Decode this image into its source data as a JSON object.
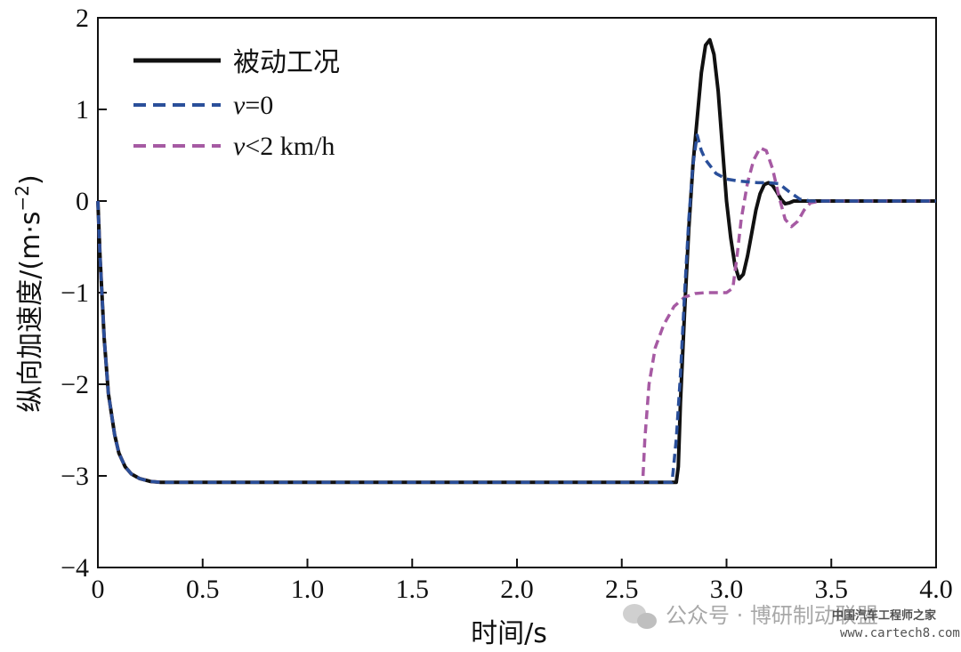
{
  "chart_data": {
    "type": "line",
    "title": "",
    "xlabel": "时间/s",
    "ylabel": "纵向加速度/(m·s",
    "ylabel_sup": "−2",
    "ylabel_close": ")",
    "xlim": [
      0,
      4.0
    ],
    "ylim": [
      -4,
      2
    ],
    "x_ticks": [
      {
        "value": 0,
        "label": "0"
      },
      {
        "value": 0.5,
        "label": "0.5"
      },
      {
        "value": 1.0,
        "label": "1.0"
      },
      {
        "value": 1.5,
        "label": "1.5"
      },
      {
        "value": 2.0,
        "label": "2.0"
      },
      {
        "value": 2.5,
        "label": "2.5"
      },
      {
        "value": 3.0,
        "label": "3.0"
      },
      {
        "value": 3.5,
        "label": "3.5"
      },
      {
        "value": 4.0,
        "label": "4.0"
      }
    ],
    "y_ticks": [
      {
        "value": 2,
        "label": "2"
      },
      {
        "value": 1,
        "label": "1"
      },
      {
        "value": 0,
        "label": "0"
      },
      {
        "value": -1,
        "label": "−1"
      },
      {
        "value": -2,
        "label": "−2"
      },
      {
        "value": -3,
        "label": "−3"
      },
      {
        "value": -4,
        "label": "−4"
      }
    ],
    "grid": false,
    "legend_position": "top-left",
    "series": [
      {
        "name": "被动工况",
        "color": "#111111",
        "dash": "solid",
        "x": [
          0,
          0.01,
          0.03,
          0.05,
          0.08,
          0.1,
          0.13,
          0.16,
          0.2,
          0.25,
          0.3,
          0.5,
          1.0,
          1.5,
          2.0,
          2.5,
          2.6,
          2.7,
          2.76,
          2.77,
          2.78,
          2.8,
          2.82,
          2.84,
          2.86,
          2.88,
          2.9,
          2.92,
          2.94,
          2.96,
          2.98,
          3.0,
          3.02,
          3.04,
          3.06,
          3.08,
          3.1,
          3.12,
          3.14,
          3.16,
          3.18,
          3.2,
          3.22,
          3.24,
          3.26,
          3.28,
          3.3,
          3.32,
          3.34,
          3.36,
          3.4,
          3.5,
          3.6,
          3.8,
          4.0
        ],
        "values": [
          0,
          -0.6,
          -1.5,
          -2.1,
          -2.55,
          -2.75,
          -2.9,
          -2.98,
          -3.03,
          -3.06,
          -3.07,
          -3.07,
          -3.07,
          -3.07,
          -3.07,
          -3.07,
          -3.07,
          -3.07,
          -3.07,
          -2.9,
          -2.2,
          -1.2,
          -0.3,
          0.4,
          0.9,
          1.4,
          1.7,
          1.76,
          1.6,
          1.2,
          0.6,
          0.0,
          -0.4,
          -0.7,
          -0.85,
          -0.8,
          -0.6,
          -0.35,
          -0.1,
          0.08,
          0.18,
          0.2,
          0.17,
          0.1,
          0.02,
          -0.03,
          -0.02,
          0.0,
          0.0,
          0.0,
          0.0,
          0.0,
          0.0,
          0.0,
          0.0
        ]
      },
      {
        "name": "v=0",
        "color": "#2a4f9a",
        "dash": "dashed",
        "x": [
          0,
          0.01,
          0.03,
          0.05,
          0.08,
          0.1,
          0.13,
          0.16,
          0.2,
          0.25,
          0.3,
          0.5,
          1.0,
          1.5,
          2.0,
          2.5,
          2.6,
          2.7,
          2.74,
          2.76,
          2.78,
          2.8,
          2.82,
          2.84,
          2.86,
          2.88,
          2.9,
          2.95,
          3.0,
          3.05,
          3.1,
          3.15,
          3.2,
          3.25,
          3.3,
          3.35,
          3.4,
          3.5,
          3.7,
          4.0
        ],
        "values": [
          0,
          -0.6,
          -1.5,
          -2.1,
          -2.55,
          -2.75,
          -2.9,
          -2.98,
          -3.03,
          -3.06,
          -3.07,
          -3.07,
          -3.07,
          -3.07,
          -3.07,
          -3.07,
          -3.07,
          -3.07,
          -3.07,
          -2.6,
          -1.9,
          -1.0,
          -0.2,
          0.4,
          0.72,
          0.55,
          0.45,
          0.3,
          0.24,
          0.22,
          0.21,
          0.2,
          0.2,
          0.19,
          0.1,
          0.02,
          0.0,
          0.0,
          0.0,
          0.0
        ]
      },
      {
        "name": "v<2 km/h",
        "color": "#a65aa3",
        "dash": "dashed",
        "x": [
          0,
          0.01,
          0.03,
          0.05,
          0.08,
          0.1,
          0.13,
          0.16,
          0.2,
          0.25,
          0.3,
          0.5,
          1.0,
          1.5,
          2.0,
          2.5,
          2.6,
          2.61,
          2.63,
          2.66,
          2.7,
          2.75,
          2.8,
          2.85,
          2.9,
          2.95,
          3.0,
          3.03,
          3.05,
          3.07,
          3.1,
          3.13,
          3.16,
          3.19,
          3.22,
          3.25,
          3.28,
          3.31,
          3.34,
          3.37,
          3.4,
          3.45,
          3.5,
          3.7,
          4.0
        ],
        "values": [
          0,
          -0.6,
          -1.5,
          -2.1,
          -2.55,
          -2.75,
          -2.9,
          -2.98,
          -3.03,
          -3.06,
          -3.07,
          -3.07,
          -3.07,
          -3.07,
          -3.07,
          -3.07,
          -3.07,
          -2.6,
          -2.0,
          -1.6,
          -1.35,
          -1.15,
          -1.05,
          -1.01,
          -1.0,
          -1.0,
          -1.0,
          -0.95,
          -0.6,
          -0.2,
          0.2,
          0.45,
          0.58,
          0.55,
          0.35,
          0.05,
          -0.2,
          -0.28,
          -0.22,
          -0.1,
          -0.02,
          0.0,
          0.0,
          0.0,
          0.0
        ]
      }
    ]
  },
  "legend": {
    "items": [
      {
        "label": "被动工况",
        "color": "#111111",
        "dash": "solid"
      },
      {
        "label_italic": "v",
        "label_rest": "=0",
        "color": "#2a4f9a",
        "dash": "dashed"
      },
      {
        "label_italic": "v",
        "label_rest": "<2 km/h",
        "color": "#a65aa3",
        "dash": "dashed"
      }
    ]
  },
  "watermark": {
    "text": "公众号 · 博研制动联盟",
    "logo_line": "中国汽车工程师之家",
    "url": "www.cartech8.com"
  }
}
